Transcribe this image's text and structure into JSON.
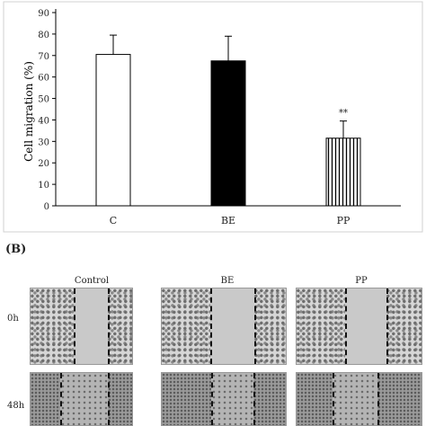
{
  "chart_data": {
    "type": "bar",
    "categories": [
      "C",
      "BE",
      "PP"
    ],
    "values": [
      70.5,
      67.5,
      31.5
    ],
    "errors": [
      9.0,
      11.5,
      8.0
    ],
    "bar_fills": [
      "white",
      "black",
      "vertical-stripes"
    ],
    "annotations": [
      "",
      "",
      "**"
    ],
    "ylabel": "Cell migration (%)",
    "ylim": [
      0,
      90
    ],
    "yticks": [
      "0",
      "10",
      "20",
      "30",
      "40",
      "50",
      "60",
      "70",
      "80",
      "90"
    ],
    "grid": false
  },
  "panel_b": {
    "label": "(B)",
    "columns": [
      "Control",
      "BE",
      "PP"
    ],
    "rows": [
      "0h",
      "48h"
    ]
  }
}
